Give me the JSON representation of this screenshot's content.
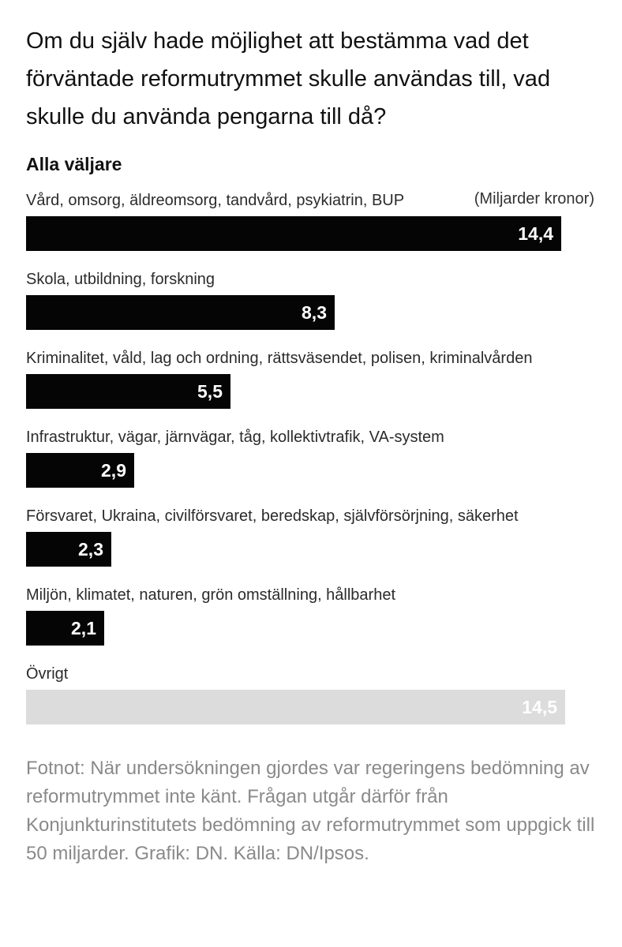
{
  "chart_data": {
    "type": "bar",
    "orientation": "horizontal",
    "title": "Om du själv hade möjlighet att bestämma vad det förväntade reformutrymmet skulle användas till, vad skulle du använda pengarna till då?",
    "subtitle": "Alla väljare",
    "unit_label": "(Miljarder kronor)",
    "categories": [
      "Vård, omsorg, äldreomsorg, tandvård, psykiatrin, BUP",
      "Skola, utbildning, forskning",
      "Kriminalitet, våld, lag och ordning, rättsväsendet, polisen, kriminalvården",
      "Infrastruktur, vägar, järnvägar, tåg, kollektivtrafik, VA-system",
      "Försvaret, Ukraina, civilförsvaret, beredskap, självförsörjning, säkerhet",
      "Miljön, klimatet, naturen, grön omställning, hållbarhet",
      "Övrigt"
    ],
    "values": [
      14.4,
      8.3,
      5.5,
      2.9,
      2.3,
      2.1,
      14.5
    ],
    "value_labels": [
      "14,4",
      "8,3",
      "5,5",
      "2,9",
      "2,3",
      "2,1",
      "14,5"
    ],
    "bar_colors": [
      "#050505",
      "#050505",
      "#050505",
      "#050505",
      "#050505",
      "#050505",
      "#dcdcdc"
    ],
    "xlim": [
      0,
      15.5
    ],
    "grid": false,
    "legend": "none"
  },
  "footnote": "Fotnot: När undersökningen gjordes var regeringens bedömning av reformutrymmet inte känt. Frågan utgår därför från Konjunkturinstitutets bedömning av reformutrymmet som uppgick till 50 miljarder. Grafik: DN. Källa: DN/Ipsos."
}
